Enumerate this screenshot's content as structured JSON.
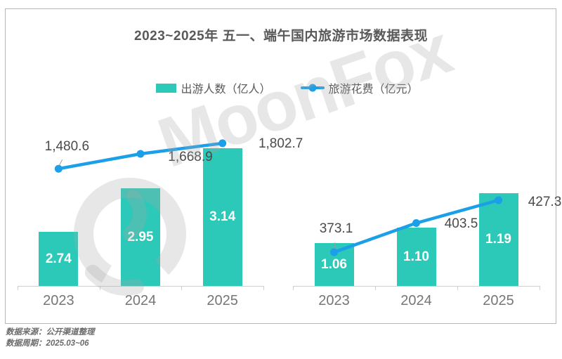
{
  "title": "2023~2025年 五一、端午国内旅游市场数据表现",
  "legend": {
    "bar_label": "出游人数（亿人）",
    "line_label": "旅游花费（亿元）"
  },
  "colors": {
    "bar": "#2cc8b8",
    "line": "#1b9fe8",
    "axis": "#cfcfcf",
    "bar_value_text": "#ffffff",
    "line_value_text": "#4a4a4a",
    "x_tick_text": "#767676",
    "leader_line": "#9a9a9a"
  },
  "watermark": {
    "text": "MoonFox"
  },
  "footer": {
    "source": "数据来源：公开渠道整理",
    "period": "数据周期：2025.03~06"
  },
  "chart_data": [
    {
      "type": "bar",
      "name": "labour-day-panel",
      "categories": [
        "2023",
        "2024",
        "2025"
      ],
      "series": [
        {
          "name": "出游人数（亿人）",
          "type": "bar",
          "values": [
            2.74,
            2.95,
            3.14
          ],
          "labels": [
            "2.74",
            "2.95",
            "3.14"
          ]
        },
        {
          "name": "旅游花费（亿元）",
          "type": "line",
          "values": [
            1480.6,
            1668.9,
            1802.7
          ],
          "labels": [
            "1,480.6",
            "1,668.9",
            "1,802.7"
          ]
        }
      ],
      "bar_axis_range": [
        2.48,
        3.41
      ],
      "line_axis_range": [
        0,
        2450
      ],
      "grid": false,
      "legend_position": "top"
    },
    {
      "type": "bar",
      "name": "dragon-boat-panel",
      "categories": [
        "2023",
        "2024",
        "2025"
      ],
      "series": [
        {
          "name": "出游人数（亿人）",
          "type": "bar",
          "values": [
            1.06,
            1.1,
            1.19
          ],
          "labels": [
            "1.06",
            "1.10",
            "1.19"
          ]
        },
        {
          "name": "旅游花费（亿元）",
          "type": "line",
          "values": [
            373.1,
            403.5,
            427.3
          ],
          "labels": [
            "373.1",
            "403.5",
            "427.3"
          ]
        }
      ],
      "bar_axis_range": [
        0.95,
        1.45
      ],
      "line_axis_range": [
        338,
        540
      ],
      "grid": false,
      "legend_position": "top"
    }
  ]
}
